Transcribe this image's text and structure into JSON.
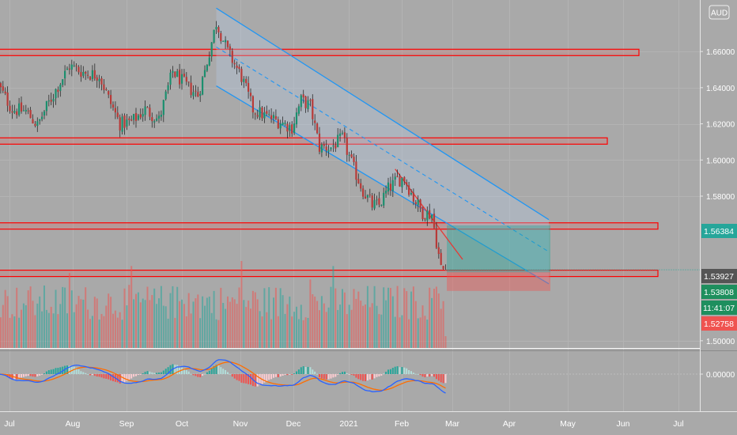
{
  "currency": "AUD",
  "colors": {
    "background": "#a9a9a9",
    "bull": "#26a69a",
    "bear": "#ef5350",
    "channel": "#2196f3",
    "zone_border": "#ff0000",
    "macd_line": "#2962ff",
    "signal_line": "#ff6d00",
    "last_price_bg": "#555555",
    "target_bg": "#26a69a",
    "stop_bg": "#ef5350",
    "timer_bg": "#1e8f5e"
  },
  "chart_data": [
    {
      "type": "candlestick",
      "panel": "price",
      "x_ticks": [
        "Jul",
        "Aug",
        "Sep",
        "Oct",
        "Nov",
        "Dec",
        "2021",
        "Feb",
        "Mar",
        "Apr",
        "May",
        "Jun",
        "Jul"
      ],
      "y_ticks": [
        "1.66000",
        "1.64000",
        "1.62000",
        "1.60000",
        "1.58000",
        "1.50000"
      ],
      "y_tick_values": [
        1.66,
        1.64,
        1.62,
        1.6,
        1.58,
        1.5
      ],
      "ylim": [
        1.496,
        1.685
      ],
      "trend": [
        [
          0,
          1.641
        ],
        [
          6,
          1.628
        ],
        [
          12,
          1.627
        ],
        [
          17,
          1.619
        ],
        [
          20,
          1.627
        ],
        [
          26,
          1.641
        ],
        [
          31,
          1.652
        ],
        [
          38,
          1.648
        ],
        [
          44,
          1.647
        ],
        [
          48,
          1.634
        ],
        [
          53,
          1.62
        ],
        [
          58,
          1.621
        ],
        [
          64,
          1.628
        ],
        [
          70,
          1.622
        ],
        [
          76,
          1.649
        ],
        [
          82,
          1.641
        ],
        [
          87,
          1.636
        ],
        [
          90,
          1.649
        ],
        [
          95,
          1.676
        ],
        [
          100,
          1.66
        ],
        [
          106,
          1.646
        ],
        [
          111,
          1.628
        ],
        [
          117,
          1.624
        ],
        [
          123,
          1.621
        ],
        [
          128,
          1.618
        ],
        [
          132,
          1.633
        ],
        [
          136,
          1.63
        ],
        [
          140,
          1.607
        ],
        [
          145,
          1.607
        ],
        [
          150,
          1.612
        ],
        [
          155,
          1.595
        ],
        [
          159,
          1.583
        ],
        [
          163,
          1.575
        ],
        [
          166,
          1.575
        ],
        [
          170,
          1.584
        ],
        [
          174,
          1.589
        ],
        [
          177,
          1.59
        ],
        [
          181,
          1.579
        ],
        [
          185,
          1.571
        ],
        [
          189,
          1.57
        ],
        [
          193,
          1.54
        ],
        [
          195,
          1.539
        ]
      ],
      "last_price": "1.53927",
      "last_price_value": 1.53927,
      "timer": "11:41:07",
      "resistance_zones": [
        1.6595,
        1.6105,
        1.5635,
        1.5373
      ],
      "position": {
        "entry": "1.53808",
        "entry_value": 1.53808,
        "target": "1.56384",
        "target_value": 1.56384,
        "stop": "1.52758",
        "stop_value": 1.52758
      },
      "descending_channel": {
        "start_bar": 95,
        "end_bar": 240,
        "upper": [
          1.684,
          1.567
        ],
        "lower": [
          1.641,
          1.5315
        ]
      }
    },
    {
      "type": "histogram",
      "panel": "volume"
    },
    {
      "type": "macd",
      "panel": "indicator",
      "y_ticks": [
        "0.00000"
      ],
      "y_tick_values": [
        0
      ]
    }
  ]
}
